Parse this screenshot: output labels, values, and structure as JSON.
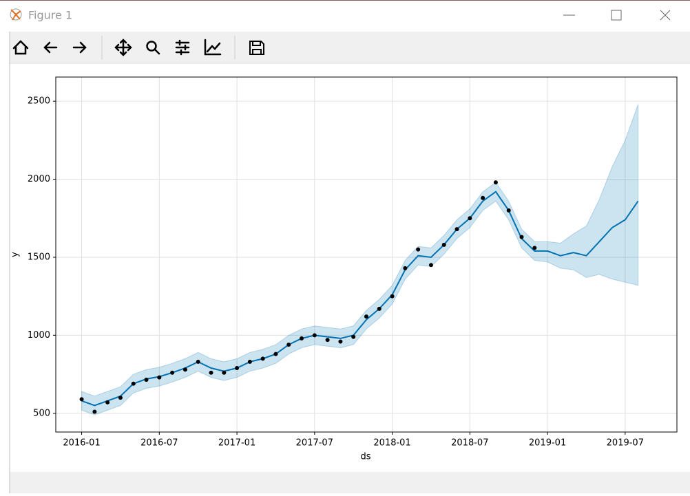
{
  "window": {
    "title": "Figure 1"
  },
  "chart_data": {
    "type": "forecast",
    "xlabel": "ds",
    "ylabel": "y",
    "xlim": [
      "2015-11",
      "2019-11"
    ],
    "ylim": [
      380,
      2655
    ],
    "xticks": [
      "2016-01",
      "2016-07",
      "2017-01",
      "2017-07",
      "2018-01",
      "2018-07",
      "2019-01",
      "2019-07"
    ],
    "yticks": [
      500,
      1000,
      1500,
      2000,
      2500
    ],
    "grid": true,
    "observed": {
      "color": "#000000",
      "x": [
        "2016-01",
        "2016-02",
        "2016-03",
        "2016-04",
        "2016-05",
        "2016-06",
        "2016-07",
        "2016-08",
        "2016-09",
        "2016-10",
        "2016-11",
        "2016-12",
        "2017-01",
        "2017-02",
        "2017-03",
        "2017-04",
        "2017-05",
        "2017-06",
        "2017-07",
        "2017-08",
        "2017-09",
        "2017-10",
        "2017-11",
        "2017-12",
        "2018-01",
        "2018-02",
        "2018-03",
        "2018-04",
        "2018-05",
        "2018-06",
        "2018-07",
        "2018-08",
        "2018-09",
        "2018-10",
        "2018-11",
        "2018-12"
      ],
      "values": [
        590,
        510,
        570,
        600,
        690,
        715,
        730,
        760,
        780,
        830,
        760,
        760,
        790,
        830,
        850,
        880,
        940,
        980,
        1000,
        970,
        960,
        990,
        1120,
        1170,
        1250,
        1430,
        1550,
        1450,
        1580,
        1680,
        1750,
        1880,
        1980,
        1800,
        1630,
        1560
      ]
    },
    "forecast": {
      "color": "#0072b2",
      "x": [
        "2016-01",
        "2016-02",
        "2016-03",
        "2016-04",
        "2016-05",
        "2016-06",
        "2016-07",
        "2016-08",
        "2016-09",
        "2016-10",
        "2016-11",
        "2016-12",
        "2017-01",
        "2017-02",
        "2017-03",
        "2017-04",
        "2017-05",
        "2017-06",
        "2017-07",
        "2017-08",
        "2017-09",
        "2017-10",
        "2017-11",
        "2017-12",
        "2018-01",
        "2018-02",
        "2018-03",
        "2018-04",
        "2018-05",
        "2018-06",
        "2018-07",
        "2018-08",
        "2018-09",
        "2018-10",
        "2018-11",
        "2018-12",
        "2019-01",
        "2019-02",
        "2019-03",
        "2019-04",
        "2019-05",
        "2019-06",
        "2019-07",
        "2019-08"
      ],
      "values": [
        580,
        550,
        580,
        610,
        690,
        720,
        735,
        760,
        790,
        830,
        790,
        770,
        790,
        830,
        850,
        880,
        940,
        980,
        1000,
        990,
        980,
        1000,
        1100,
        1170,
        1260,
        1420,
        1510,
        1500,
        1580,
        1680,
        1750,
        1860,
        1920,
        1800,
        1620,
        1540,
        1540,
        1510,
        1530,
        1510,
        1600,
        1690,
        1740,
        1860
      ],
      "lower": [
        520,
        490,
        520,
        550,
        630,
        660,
        675,
        700,
        730,
        770,
        730,
        710,
        730,
        770,
        790,
        820,
        880,
        920,
        940,
        930,
        920,
        940,
        1040,
        1110,
        1200,
        1360,
        1450,
        1440,
        1520,
        1620,
        1690,
        1800,
        1860,
        1740,
        1560,
        1480,
        1470,
        1430,
        1420,
        1370,
        1390,
        1360,
        1340,
        1320
      ],
      "upper": [
        640,
        610,
        640,
        670,
        750,
        780,
        795,
        820,
        850,
        890,
        850,
        830,
        850,
        890,
        910,
        940,
        1000,
        1040,
        1060,
        1050,
        1040,
        1060,
        1160,
        1230,
        1320,
        1480,
        1570,
        1560,
        1640,
        1740,
        1810,
        1920,
        1980,
        1860,
        1680,
        1600,
        1600,
        1590,
        1650,
        1700,
        1870,
        2080,
        2250,
        2480
      ]
    }
  }
}
